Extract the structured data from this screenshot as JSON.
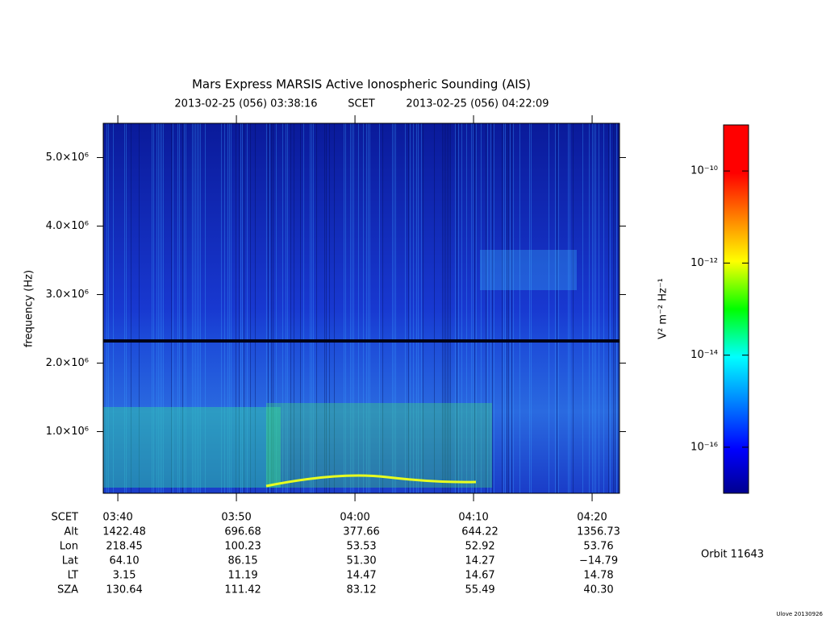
{
  "chart_data": {
    "type": "spectrogram",
    "title": "Mars Express MARSIS Active Ionospheric Sounding (AIS)",
    "time_start": "2013-02-25 (056) 03:38:16",
    "time_label": "SCET",
    "time_end": "2013-02-25 (056) 04:22:09",
    "y_label": "frequency (Hz)",
    "xlim": [
      218.77,
      262.31
    ],
    "xticks": [
      {
        "value": 220,
        "label": "03:40"
      },
      {
        "value": 230,
        "label": "03:50"
      },
      {
        "value": 240,
        "label": "04:00"
      },
      {
        "value": 250,
        "label": "04:10"
      },
      {
        "value": 260,
        "label": "04:20"
      }
    ],
    "ylim": [
      100000,
      5500000
    ],
    "yticks": [
      {
        "value": 1000000,
        "label": "1.0×10⁶"
      },
      {
        "value": 2000000,
        "label": "2.0×10⁶"
      },
      {
        "value": 3000000,
        "label": "3.0×10⁶"
      },
      {
        "value": 4000000,
        "label": "4.0×10⁶"
      },
      {
        "value": 5000000,
        "label": "5.0×10⁶"
      }
    ],
    "colorbar": {
      "label": "V² m⁻² Hz⁻¹",
      "log_scale": true,
      "zlim": [
        1e-17,
        1e-09
      ],
      "ticks": [
        {
          "value": 1e-10,
          "label": "10⁻¹⁰"
        },
        {
          "value": 1e-12,
          "label": "10⁻¹²"
        },
        {
          "value": 1e-14,
          "label": "10⁻¹⁴"
        },
        {
          "value": 1e-16,
          "label": "10⁻¹⁶"
        }
      ]
    },
    "ephemeris_header": "SCET",
    "ephemeris": [
      {
        "label": "Alt",
        "values": [
          "1422.48",
          "696.68",
          "377.66",
          "644.22",
          "1356.73"
        ]
      },
      {
        "label": "Lon",
        "values": [
          "218.45",
          "100.23",
          "53.53",
          "52.92",
          "53.76"
        ]
      },
      {
        "label": "Lat",
        "values": [
          "64.10",
          "86.15",
          "51.30",
          "14.27",
          "−14.79"
        ]
      },
      {
        "label": "LT",
        "values": [
          "3.15",
          "11.19",
          "14.47",
          "14.67",
          "14.78"
        ]
      },
      {
        "label": "SZA",
        "values": [
          "130.64",
          "111.42",
          "83.12",
          "55.49",
          "40.30"
        ]
      }
    ],
    "orbit": "Orbit 11643",
    "credit": "Ulove 20130926"
  }
}
